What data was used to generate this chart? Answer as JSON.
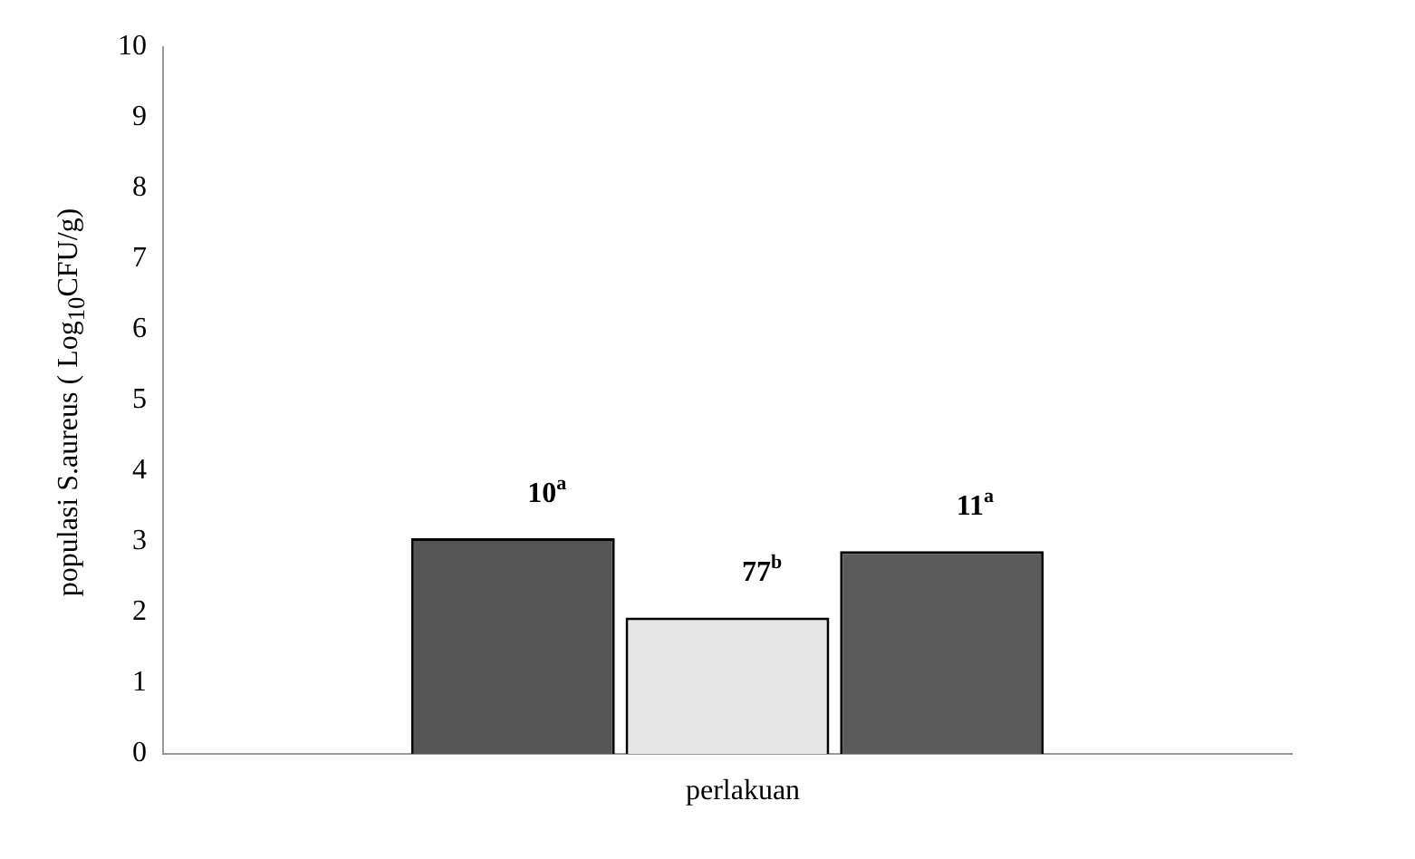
{
  "chart_data": {
    "type": "bar",
    "xlabel": "perlakuan",
    "ylabel": "populasi S.aureus ( Log$_{10}$CFU/g)",
    "categories": [
      null
    ],
    "series": [
      {
        "color": "#555555",
        "values": [
          3.05
        ]
      },
      {
        "color": "#e6e6e6",
        "values": [
          1.93
        ]
      },
      {
        "color": "#5a5a5a",
        "values": [
          2.87
        ]
      }
    ],
    "annotations": [
      "10$^{a}$",
      "77$^{b}$",
      "11$^{a}$"
    ],
    "ylim": [
      0,
      10
    ],
    "yticks": [
      0,
      1,
      2,
      3,
      4,
      5,
      6,
      7,
      8,
      9,
      10
    ],
    "grid": false,
    "legend": false
  }
}
